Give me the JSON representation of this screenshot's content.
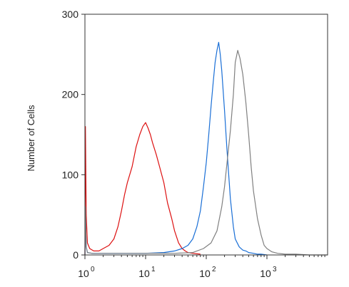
{
  "chart_data": {
    "type": "line",
    "title": "",
    "xlabel": "",
    "ylabel": "Number of Cells",
    "x_scale": "log",
    "xlim": [
      1,
      10000
    ],
    "ylim": [
      0,
      300
    ],
    "x_ticks": [
      {
        "value": 1,
        "base": "10",
        "exp": "0"
      },
      {
        "value": 10,
        "base": "10",
        "exp": "1"
      },
      {
        "value": 100,
        "base": "10",
        "exp": "2"
      },
      {
        "value": 1000,
        "base": "10",
        "exp": "3"
      }
    ],
    "y_ticks": [
      {
        "value": 0,
        "label": "0"
      },
      {
        "value": 100,
        "label": "100"
      },
      {
        "value": 200,
        "label": "200"
      },
      {
        "value": 300,
        "label": "300"
      }
    ],
    "grid": false,
    "legend": "none",
    "series": [
      {
        "color": "#dd1111",
        "x": [
          1.0,
          1.02,
          1.05,
          1.1,
          1.2,
          1.4,
          1.7,
          2.0,
          2.5,
          3.0,
          3.5,
          4.0,
          4.5,
          5.0,
          6.0,
          7.0,
          8.0,
          9.0,
          10,
          11,
          12,
          13,
          15,
          17,
          20,
          23,
          27,
          30,
          35,
          40,
          45,
          50,
          60,
          80
        ],
        "y": [
          0,
          160,
          50,
          15,
          8,
          5,
          5,
          8,
          12,
          20,
          35,
          55,
          75,
          90,
          110,
          135,
          150,
          160,
          165,
          158,
          150,
          140,
          125,
          110,
          90,
          65,
          45,
          30,
          15,
          8,
          5,
          3,
          2,
          1
        ]
      },
      {
        "color": "#1a6fd6",
        "x": [
          1.0,
          1.02,
          1.05,
          1.1,
          1.3,
          2.0,
          5.0,
          10,
          20,
          30,
          40,
          50,
          60,
          70,
          80,
          90,
          100,
          110,
          120,
          130,
          140,
          150,
          160,
          170,
          180,
          200,
          220,
          250,
          280,
          300,
          350,
          400,
          450,
          500,
          600,
          700,
          800,
          1000
        ],
        "y": [
          0,
          55,
          10,
          3,
          2,
          2,
          2,
          2,
          3,
          5,
          8,
          12,
          20,
          35,
          55,
          85,
          115,
          150,
          185,
          215,
          240,
          255,
          265,
          250,
          230,
          180,
          130,
          70,
          35,
          20,
          10,
          6,
          5,
          3,
          2,
          1,
          1,
          0
        ]
      },
      {
        "color": "#808080",
        "x": [
          1.0,
          1.02,
          1.05,
          1.1,
          1.3,
          2.0,
          5.0,
          10,
          30,
          60,
          90,
          120,
          150,
          180,
          200,
          220,
          250,
          280,
          300,
          330,
          360,
          400,
          450,
          500,
          550,
          600,
          700,
          800,
          900,
          1000,
          1200,
          1500,
          2000,
          3000,
          5000,
          10000
        ],
        "y": [
          0,
          60,
          10,
          3,
          2,
          2,
          2,
          2,
          2,
          3,
          8,
          15,
          30,
          60,
          85,
          115,
          155,
          200,
          240,
          255,
          245,
          225,
          190,
          150,
          110,
          80,
          45,
          25,
          12,
          8,
          4,
          2,
          1,
          1,
          0,
          0
        ]
      }
    ]
  }
}
